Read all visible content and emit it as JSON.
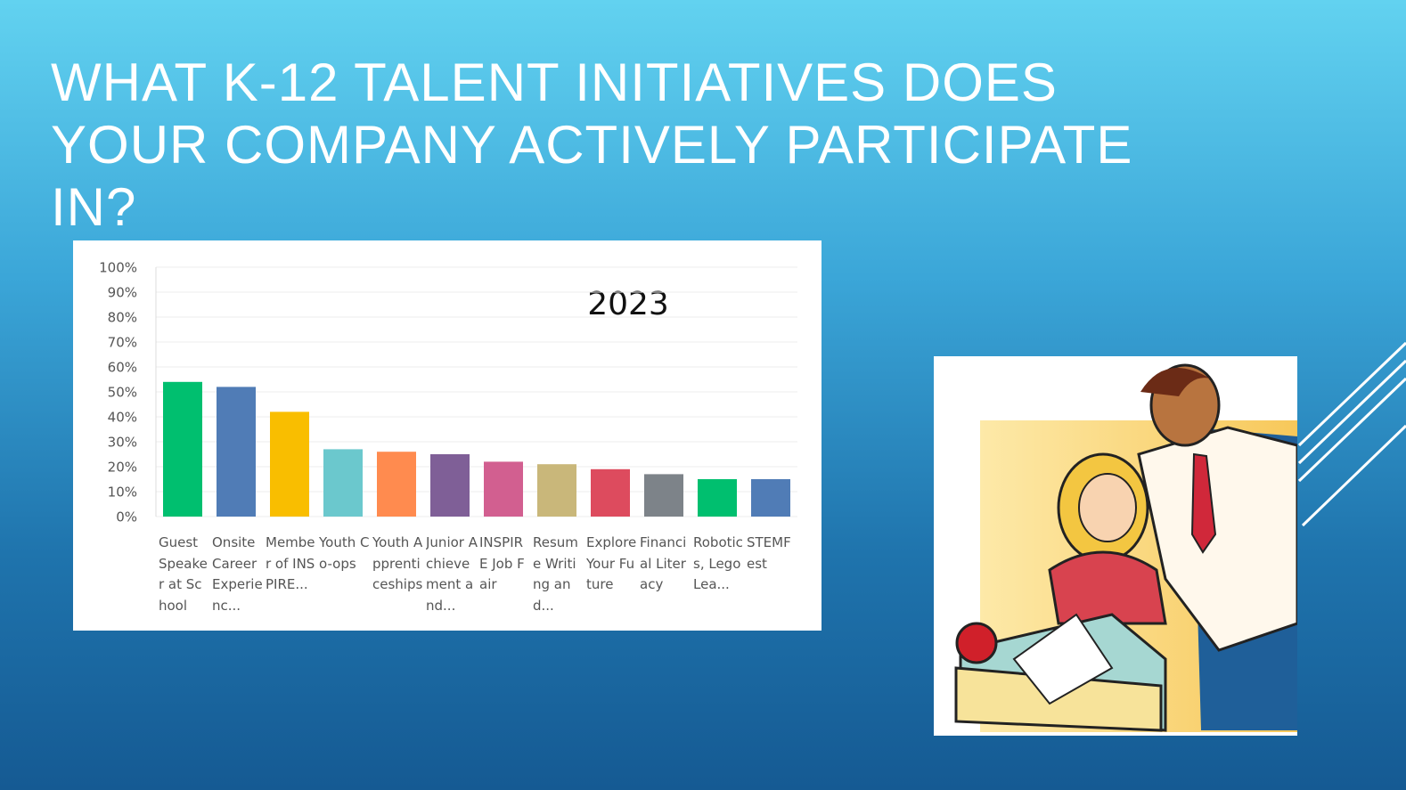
{
  "slide": {
    "title": "WHAT K-12 TALENT INITIATIVES DOES YOUR COMPANY ACTIVELY PARTICIPATE IN?"
  },
  "chart_data": {
    "type": "bar",
    "annotation": "2023",
    "categories": [
      "Guest Speaker at School",
      "Onsite Career Experienc...",
      "Member of INSPIRE...",
      "Youth Co-ops",
      "Youth Apprenticeships",
      "Junior Achievement and...",
      "INSPIRE Job Fair",
      "Resume Writing and...",
      "Explore Your Future",
      "Financial Literacy",
      "Robotics, Lego Lea...",
      "STEMFest"
    ],
    "values": [
      54,
      52,
      42,
      27,
      26,
      25,
      22,
      21,
      19,
      17,
      15,
      15
    ],
    "colors": [
      "#00bf6f",
      "#507cb6",
      "#f9be00",
      "#6bc8cd",
      "#ff8b4f",
      "#7f5f97",
      "#d25f90",
      "#c9b77a",
      "#dd4b5e",
      "#7d8389",
      "#00bf6f",
      "#507cb6"
    ],
    "ylim": [
      0,
      100
    ],
    "yticks": [
      {
        "value": 0,
        "label": "0%"
      },
      {
        "value": 10,
        "label": "10%"
      },
      {
        "value": 20,
        "label": "20%"
      },
      {
        "value": 30,
        "label": "30%"
      },
      {
        "value": 40,
        "label": "40%"
      },
      {
        "value": 50,
        "label": "50%"
      },
      {
        "value": 60,
        "label": "60%"
      },
      {
        "value": 70,
        "label": "70%"
      },
      {
        "value": 80,
        "label": "80%"
      },
      {
        "value": 90,
        "label": "90%"
      },
      {
        "value": 100,
        "label": "100%"
      }
    ],
    "grid": true
  }
}
